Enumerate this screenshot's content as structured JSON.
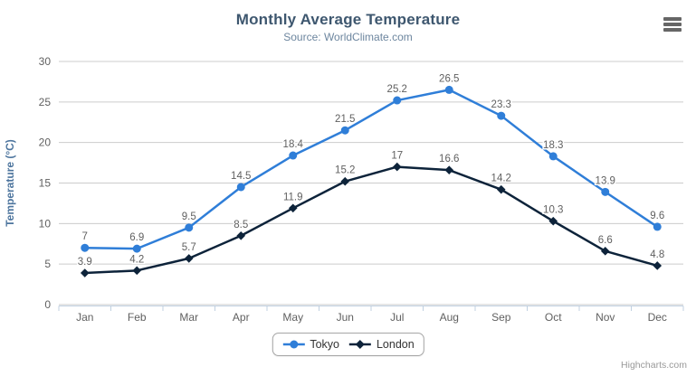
{
  "header": {
    "title": "Monthly Average Temperature",
    "subtitle": "Source: WorldClimate.com"
  },
  "chart_data": {
    "type": "line",
    "title": "Monthly Average Temperature",
    "subtitle": "Source: WorldClimate.com",
    "categories": [
      "Jan",
      "Feb",
      "Mar",
      "Apr",
      "May",
      "Jun",
      "Jul",
      "Aug",
      "Sep",
      "Oct",
      "Nov",
      "Dec"
    ],
    "series": [
      {
        "name": "Tokyo",
        "color": "#2f7ed8",
        "marker": "circle",
        "values": [
          7,
          6.9,
          9.5,
          14.5,
          18.4,
          21.5,
          25.2,
          26.5,
          23.3,
          18.3,
          13.9,
          9.6
        ]
      },
      {
        "name": "London",
        "color": "#0d233a",
        "marker": "diamond",
        "values": [
          3.9,
          4.2,
          5.7,
          8.5,
          11.9,
          15.2,
          17,
          16.6,
          14.2,
          10.3,
          6.6,
          4.8
        ]
      }
    ],
    "xlabel": "",
    "ylabel": "Temperature (°C)",
    "ylim": [
      0,
      30
    ],
    "yticks": [
      0,
      5,
      10,
      15,
      20,
      25,
      30
    ],
    "grid": true,
    "data_labels": true,
    "legend_position": "bottom"
  },
  "credits": {
    "label": "Highcharts.com"
  },
  "colors": {
    "title": "#3e576f",
    "subtitle": "#6d869f",
    "grid": "#cccccc",
    "axis_line": "#c0d0e0",
    "tick_label": "#606060",
    "yaxis_title": "#4d759e",
    "data_label": "#606060",
    "legend_text": "#333333",
    "legend_border": "#a6a6a6",
    "menu_icon": "#666666",
    "credits": "#999999",
    "background": "#ffffff"
  }
}
